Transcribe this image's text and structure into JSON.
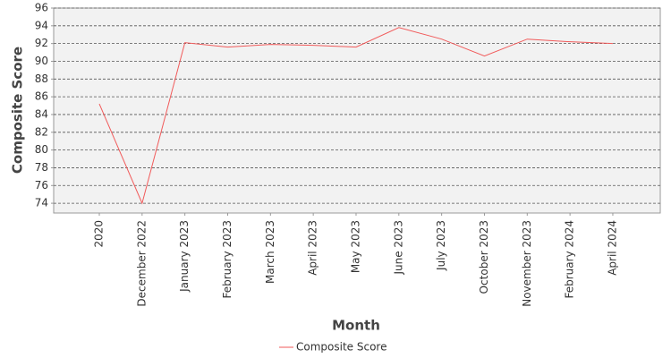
{
  "chart_data": {
    "type": "line",
    "x_label": "Month",
    "y_label": "Composite Score",
    "categories": [
      "2020",
      "December 2022",
      "January 2023",
      "February 2023",
      "March 2023",
      "April 2023",
      "May 2023",
      "June 2023",
      "July 2023",
      "October 2023",
      "November 2023",
      "February 2024",
      "April 2024"
    ],
    "series": [
      {
        "name": "Composite Score",
        "color": "#f15a5a",
        "values": [
          85.2,
          74.0,
          92.1,
          91.6,
          91.9,
          91.8,
          91.6,
          93.8,
          92.5,
          90.6,
          92.5,
          92.2,
          92.0
        ]
      }
    ],
    "ylim": [
      72.9,
      96
    ],
    "yticks": [
      74,
      76,
      78,
      80,
      82,
      84,
      86,
      88,
      90,
      92,
      94,
      96
    ],
    "grid": true,
    "legend": "bottom"
  }
}
